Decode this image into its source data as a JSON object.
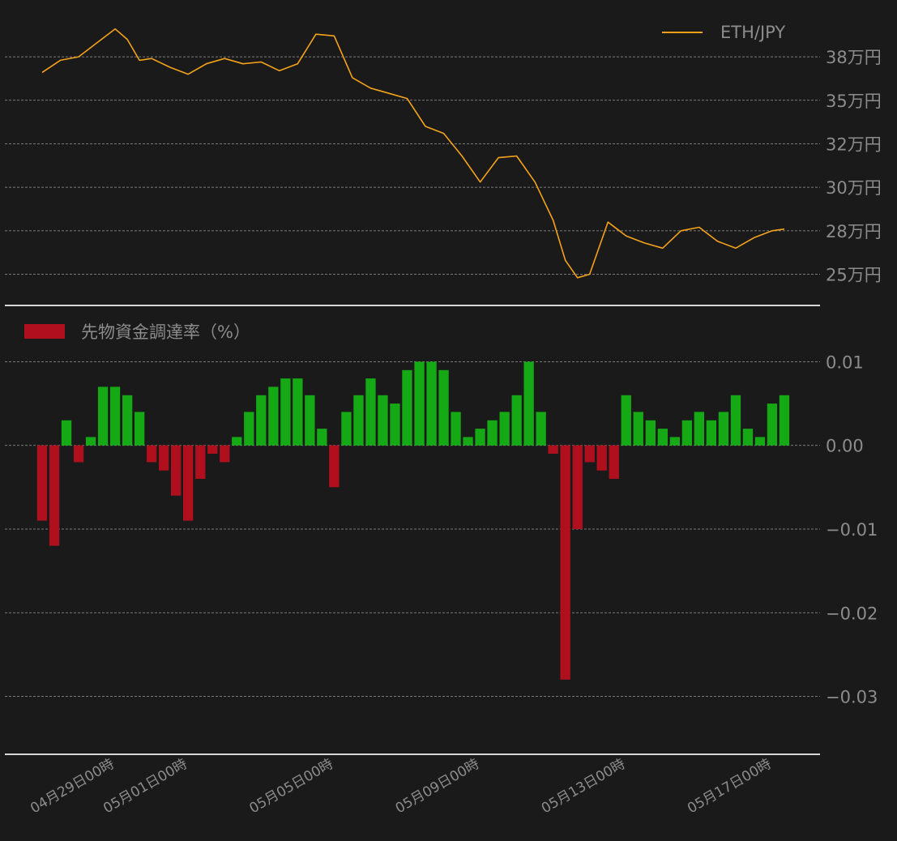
{
  "colors": {
    "background": "#1a1a1a",
    "price_line": "#f5a21b",
    "positive_bar": "#16a916",
    "negative_bar": "#b0101e",
    "grid": "#9a9a9a",
    "text": "#8c8c8c",
    "divider": "#d8d8d8"
  },
  "chart_data": [
    {
      "type": "line",
      "series": [
        {
          "name": "ETH/JPY",
          "x": [
            "2022-04-27T00:00",
            "2022-04-27T12:00",
            "2022-04-28T00:00",
            "2022-04-28T12:00",
            "2022-04-29T00:00",
            "2022-04-29T08:00",
            "2022-04-29T16:00",
            "2022-04-30T00:00",
            "2022-04-30T12:00",
            "2022-05-01T00:00",
            "2022-05-01T12:00",
            "2022-05-02T00:00",
            "2022-05-02T12:00",
            "2022-05-03T00:00",
            "2022-05-03T12:00",
            "2022-05-04T00:00",
            "2022-05-04T12:00",
            "2022-05-05T00:00",
            "2022-05-05T12:00",
            "2022-05-06T00:00",
            "2022-05-06T12:00",
            "2022-05-07T00:00",
            "2022-05-07T12:00",
            "2022-05-08T00:00",
            "2022-05-08T12:00",
            "2022-05-09T00:00",
            "2022-05-09T12:00",
            "2022-05-10T00:00",
            "2022-05-10T12:00",
            "2022-05-11T00:00",
            "2022-05-11T08:00",
            "2022-05-11T16:00",
            "2022-05-12T00:00",
            "2022-05-12T12:00",
            "2022-05-13T00:00",
            "2022-05-13T12:00",
            "2022-05-14T00:00",
            "2022-05-14T12:00",
            "2022-05-15T00:00",
            "2022-05-15T12:00",
            "2022-05-16T00:00",
            "2022-05-16T12:00",
            "2022-05-17T00:00",
            "2022-05-17T08:00"
          ],
          "values": [
            366000,
            373000,
            375000,
            383000,
            391000,
            385000,
            373000,
            374000,
            369000,
            365000,
            371000,
            374000,
            371000,
            372000,
            367000,
            371000,
            388000,
            387000,
            363000,
            357000,
            354000,
            351000,
            335000,
            331000,
            318000,
            303000,
            317000,
            318000,
            303000,
            281000,
            258000,
            248000,
            250000,
            280000,
            272000,
            268000,
            265000,
            275000,
            277000,
            269000,
            265000,
            271000,
            275000,
            276000
          ]
        }
      ],
      "yticks": [
        250000,
        275000,
        300000,
        325000,
        350000,
        375000
      ],
      "ytick_labels": [
        "25万円",
        "28万円",
        "30万円",
        "32万円",
        "35万円",
        "38万円"
      ],
      "ylim": [
        240000,
        396000
      ],
      "xlim": [
        "2022-04-27T00:00",
        "2022-05-17T08:00"
      ],
      "grid": "horizontal-dashed",
      "legend": "top-right",
      "legend_label": "ETH/JPY"
    },
    {
      "type": "bar",
      "series": [
        {
          "name": "先物資金調達率（%）",
          "x": [
            "2022-04-27T00:00",
            "2022-04-27T08:00",
            "2022-04-27T16:00",
            "2022-04-28T00:00",
            "2022-04-28T08:00",
            "2022-04-28T16:00",
            "2022-04-29T00:00",
            "2022-04-29T08:00",
            "2022-04-29T16:00",
            "2022-04-30T00:00",
            "2022-04-30T08:00",
            "2022-04-30T16:00",
            "2022-05-01T00:00",
            "2022-05-01T08:00",
            "2022-05-01T16:00",
            "2022-05-02T00:00",
            "2022-05-02T08:00",
            "2022-05-02T16:00",
            "2022-05-03T00:00",
            "2022-05-03T08:00",
            "2022-05-03T16:00",
            "2022-05-04T00:00",
            "2022-05-04T08:00",
            "2022-05-04T16:00",
            "2022-05-05T00:00",
            "2022-05-05T08:00",
            "2022-05-05T16:00",
            "2022-05-06T00:00",
            "2022-05-06T08:00",
            "2022-05-06T16:00",
            "2022-05-07T00:00",
            "2022-05-07T08:00",
            "2022-05-07T16:00",
            "2022-05-08T00:00",
            "2022-05-08T08:00",
            "2022-05-08T16:00",
            "2022-05-09T00:00",
            "2022-05-09T08:00",
            "2022-05-09T16:00",
            "2022-05-10T00:00",
            "2022-05-10T08:00",
            "2022-05-10T16:00",
            "2022-05-11T00:00",
            "2022-05-11T08:00",
            "2022-05-11T16:00",
            "2022-05-12T00:00",
            "2022-05-12T08:00",
            "2022-05-12T16:00",
            "2022-05-13T00:00",
            "2022-05-13T08:00",
            "2022-05-13T16:00",
            "2022-05-14T00:00",
            "2022-05-14T08:00",
            "2022-05-14T16:00",
            "2022-05-15T00:00",
            "2022-05-15T08:00",
            "2022-05-15T16:00",
            "2022-05-16T00:00",
            "2022-05-16T08:00",
            "2022-05-16T16:00",
            "2022-05-17T00:00",
            "2022-05-17T08:00"
          ],
          "values": [
            -0.009,
            -0.012,
            0.003,
            -0.002,
            0.001,
            0.007,
            0.007,
            0.006,
            0.004,
            -0.002,
            -0.003,
            -0.006,
            -0.009,
            -0.004,
            -0.001,
            -0.002,
            0.001,
            0.004,
            0.006,
            0.007,
            0.008,
            0.008,
            0.006,
            0.002,
            -0.005,
            0.004,
            0.006,
            0.008,
            0.006,
            0.005,
            0.009,
            0.01,
            0.01,
            0.009,
            0.004,
            0.001,
            0.002,
            0.003,
            0.004,
            0.006,
            0.01,
            0.004,
            -0.001,
            -0.028,
            -0.01,
            -0.002,
            -0.003,
            -0.004,
            0.006,
            0.004,
            0.003,
            0.002,
            0.001,
            0.003,
            0.004,
            0.003,
            0.004,
            0.006,
            0.002,
            0.001,
            0.005,
            0.006
          ]
        }
      ],
      "yticks": [
        -0.03,
        -0.02,
        -0.01,
        0.0,
        0.01
      ],
      "ytick_labels": [
        "−0.03",
        "−0.02",
        "−0.01",
        "0.00",
        "0.01"
      ],
      "ylim": [
        -0.0345,
        0.0145
      ],
      "xticks": [
        "2022-04-29T00:00",
        "2022-05-01T00:00",
        "2022-05-05T00:00",
        "2022-05-09T00:00",
        "2022-05-13T00:00",
        "2022-05-17T00:00"
      ],
      "xtick_labels": [
        "04月29日00時",
        "05月01日00時",
        "05月05日00時",
        "05月09日00時",
        "05月13日00時",
        "05月17日00時"
      ],
      "xlim": [
        "2022-04-27T00:00",
        "2022-05-17T08:00"
      ],
      "grid": "horizontal-dashed",
      "legend": "top-left",
      "legend_label": "先物資金調達率（%）"
    }
  ]
}
